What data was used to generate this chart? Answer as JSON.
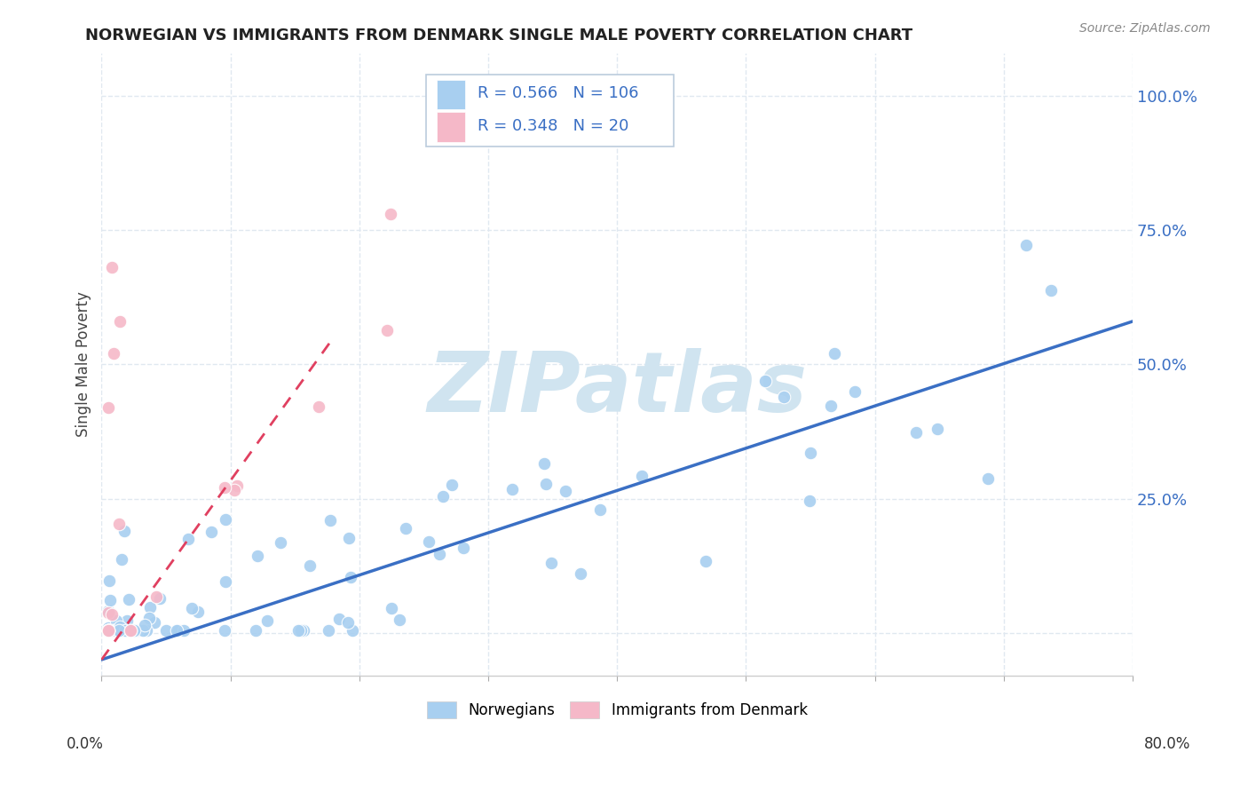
{
  "title": "NORWEGIAN VS IMMIGRANTS FROM DENMARK SINGLE MALE POVERTY CORRELATION CHART",
  "source_text": "Source: ZipAtlas.com",
  "ylabel": "Single Male Poverty",
  "yticks": [
    0.0,
    0.25,
    0.5,
    0.75,
    1.0
  ],
  "ytick_labels": [
    "",
    "25.0%",
    "50.0%",
    "75.0%",
    "100.0%"
  ],
  "xlim": [
    0.0,
    0.8
  ],
  "ylim": [
    -0.08,
    1.08
  ],
  "blue_R": 0.566,
  "blue_N": 106,
  "pink_R": 0.348,
  "pink_N": 20,
  "blue_color": "#a8cff0",
  "pink_color": "#f5b8c8",
  "blue_line_color": "#3a6fc4",
  "pink_line_color": "#e04060",
  "pink_line_dashed": true,
  "watermark": "ZIPatlas",
  "watermark_color": "#d0e4f0",
  "background_color": "#ffffff",
  "grid_color": "#e0e8f0",
  "grid_style": "--",
  "blue_line_y0": -0.05,
  "blue_line_y1": 0.58,
  "pink_line_x0": 0.0,
  "pink_line_y0": -0.05,
  "pink_line_x1": 0.18,
  "pink_line_y1": 0.55
}
